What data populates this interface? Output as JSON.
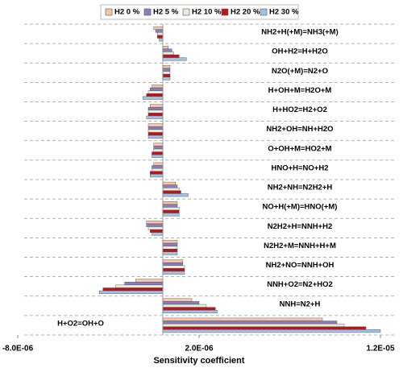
{
  "chart_data": {
    "type": "bar",
    "orientation": "horizontal",
    "xlabel": "Sensitivity coefficient",
    "categories": [
      "NH2+H(+M)=NH3(+M)",
      "OH+H2=H+H2O",
      "N2O(+M)=N2+O",
      "H+OH+M=H2O+M",
      "H+HO2=H2+O2",
      "NH2+OH=NH+H2O",
      "O+OH+M=HO2+M",
      "HNO+H=NO+H2",
      "NH2+NH=N2H2+H",
      "NO+H(+M)=HNO(+M)",
      "N2H2+H=NNH+H2",
      "N2H2+M=NNH+H+M",
      "NH2+NO=NNH+OH",
      "NNH+O2=N2+HO2",
      "NNH=N2+H",
      "H+O2=OH+O"
    ],
    "series": [
      {
        "name": "H2 0 %",
        "color": "#f4c8a4",
        "values": [
          -5e-07,
          3e-07,
          4e-07,
          -6e-07,
          -7e-07,
          -8e-07,
          -5e-07,
          -5e-07,
          7e-07,
          8e-07,
          -9e-07,
          8e-07,
          1.1e-06,
          -1.5e-06,
          1.6e-06,
          8.8e-06
        ]
      },
      {
        "name": "H2 5 %",
        "color": "#8e7cc3",
        "values": [
          -4e-07,
          5e-07,
          4e-07,
          -7e-07,
          -8e-07,
          -8e-07,
          -5e-07,
          -6e-07,
          8e-07,
          8e-07,
          -9e-07,
          8e-07,
          1.1e-06,
          -2.1e-06,
          2e-06,
          9.6e-06
        ]
      },
      {
        "name": "H2 10 %",
        "color": "#e6eddd",
        "values": [
          -3e-07,
          6e-07,
          4e-07,
          -8e-07,
          -8e-07,
          -8e-07,
          -5e-07,
          -6e-07,
          9e-07,
          9e-07,
          -8e-07,
          8e-07,
          1.2e-06,
          -2.6e-06,
          2.4e-06,
          1e-05
        ]
      },
      {
        "name": "H2 20 %",
        "color": "#c0141c",
        "values": [
          -3e-07,
          9e-07,
          4e-07,
          -9e-07,
          -8e-07,
          -8e-07,
          -6e-07,
          -7e-07,
          1e-06,
          9e-07,
          -7e-07,
          8e-07,
          1.2e-06,
          -3.3e-06,
          2.9e-06,
          1.12e-05
        ]
      },
      {
        "name": "H2 30 %",
        "color": "#9dc3e6",
        "values": [
          -2e-07,
          1.3e-06,
          4e-07,
          -1.1e-06,
          -9e-07,
          -8e-07,
          -6e-07,
          -7e-07,
          1.4e-06,
          9e-07,
          -6e-07,
          8e-07,
          1.2e-06,
          -3.5e-06,
          3e-06,
          1.2e-05
        ]
      }
    ],
    "xlim": [
      -8e-06,
      1.2e-05
    ],
    "xticks": [
      {
        "value": -8e-06,
        "label": "-8.0E-06"
      },
      {
        "value": 2e-06,
        "label": "2.0E-06"
      },
      {
        "value": 1.2e-05,
        "label": "1.2E-05"
      }
    ],
    "legend": "top"
  }
}
